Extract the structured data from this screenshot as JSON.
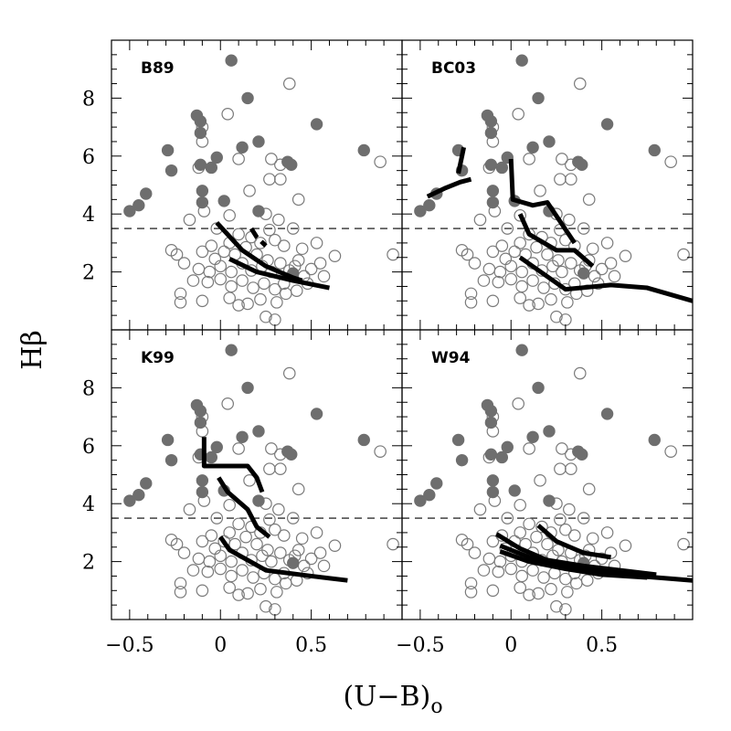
{
  "chart_data": {
    "type": "scatter",
    "layout": "2x2 panels sharing axes",
    "xlabel": "(U−B)",
    "xlabel_subscript": "o",
    "ylabel": "Hβ",
    "xlim": [
      -0.6,
      1.0
    ],
    "ylim": [
      0,
      10
    ],
    "x_ticks": [
      -0.5,
      0,
      0.5
    ],
    "x_tick_labels": [
      "−0.5",
      "0",
      "0.5"
    ],
    "y_ticks": [
      2,
      4,
      6,
      8
    ],
    "y_tick_labels": [
      "2",
      "4",
      "6",
      "8"
    ],
    "reference_line": {
      "y": 3.5,
      "style": "dashed"
    },
    "colors": {
      "filled": "#6e6e6e",
      "open": "#7a7a7a",
      "model": "#000000",
      "dashed": "#000000"
    },
    "filled_points": [
      [
        0.06,
        9.3
      ],
      [
        0.15,
        8.0
      ],
      [
        0.21,
        6.5
      ],
      [
        0.12,
        6.3
      ],
      [
        0.53,
        7.1
      ],
      [
        0.79,
        6.2
      ],
      [
        -0.13,
        7.4
      ],
      [
        -0.11,
        7.2
      ],
      [
        -0.11,
        6.8
      ],
      [
        -0.29,
        6.2
      ],
      [
        -0.11,
        5.7
      ],
      [
        -0.27,
        5.5
      ],
      [
        -0.02,
        5.95
      ],
      [
        -0.05,
        5.6
      ],
      [
        0.37,
        5.8
      ],
      [
        0.39,
        5.7
      ],
      [
        -0.1,
        4.8
      ],
      [
        -0.1,
        4.4
      ],
      [
        0.02,
        4.45
      ],
      [
        0.21,
        4.1
      ],
      [
        -0.41,
        4.7
      ],
      [
        -0.45,
        4.3
      ],
      [
        -0.5,
        4.1
      ],
      [
        0.4,
        1.95
      ]
    ],
    "open_points": [
      [
        0.38,
        8.5
      ],
      [
        0.04,
        7.45
      ],
      [
        -0.1,
        7.0
      ],
      [
        -0.1,
        6.5
      ],
      [
        0.1,
        5.9
      ],
      [
        0.28,
        5.9
      ],
      [
        -0.12,
        5.6
      ],
      [
        0.33,
        5.7
      ],
      [
        0.27,
        5.2
      ],
      [
        0.33,
        5.2
      ],
      [
        0.16,
        4.8
      ],
      [
        0.43,
        4.5
      ],
      [
        -0.09,
        4.1
      ],
      [
        0.05,
        3.95
      ],
      [
        0.25,
        4.0
      ],
      [
        0.32,
        3.8
      ],
      [
        -0.17,
        3.8
      ],
      [
        -0.02,
        3.5
      ],
      [
        0.27,
        3.45
      ],
      [
        0.4,
        3.5
      ],
      [
        -0.27,
        2.75
      ],
      [
        -0.24,
        2.6
      ],
      [
        -0.1,
        2.7
      ],
      [
        -0.05,
        2.9
      ],
      [
        0.05,
        3.0
      ],
      [
        0.1,
        3.3
      ],
      [
        0.17,
        3.2
      ],
      [
        0.22,
        3.0
      ],
      [
        0.3,
        3.1
      ],
      [
        0.35,
        2.9
      ],
      [
        0.45,
        2.8
      ],
      [
        0.53,
        3.0
      ],
      [
        0.63,
        2.55
      ],
      [
        0.95,
        2.6
      ],
      [
        0.88,
        5.8
      ],
      [
        -0.2,
        2.3
      ],
      [
        -0.12,
        2.1
      ],
      [
        -0.06,
        2.0
      ],
      [
        0.0,
        2.2
      ],
      [
        0.06,
        2.0
      ],
      [
        0.12,
        2.3
      ],
      [
        0.17,
        2.05
      ],
      [
        0.23,
        2.2
      ],
      [
        0.28,
        2.0
      ],
      [
        0.33,
        2.3
      ],
      [
        0.38,
        2.05
      ],
      [
        0.43,
        2.4
      ],
      [
        0.5,
        2.1
      ],
      [
        0.55,
        2.3
      ],
      [
        -0.15,
        1.7
      ],
      [
        -0.07,
        1.65
      ],
      [
        0.0,
        1.75
      ],
      [
        0.06,
        1.5
      ],
      [
        0.12,
        1.7
      ],
      [
        0.18,
        1.45
      ],
      [
        0.24,
        1.6
      ],
      [
        0.3,
        1.4
      ],
      [
        0.35,
        1.6
      ],
      [
        0.42,
        1.35
      ],
      [
        0.48,
        1.6
      ],
      [
        -0.22,
        1.25
      ],
      [
        -0.22,
        0.95
      ],
      [
        -0.1,
        1.0
      ],
      [
        0.05,
        1.1
      ],
      [
        0.1,
        0.85
      ],
      [
        0.15,
        0.9
      ],
      [
        0.25,
        0.45
      ],
      [
        0.3,
        0.35
      ],
      [
        0.08,
        2.6
      ],
      [
        0.02,
        2.7
      ],
      [
        -0.03,
        2.45
      ],
      [
        0.2,
        2.6
      ],
      [
        0.14,
        2.85
      ],
      [
        0.26,
        2.4
      ],
      [
        0.41,
        2.2
      ],
      [
        0.46,
        1.85
      ],
      [
        0.36,
        1.25
      ],
      [
        0.22,
        1.05
      ],
      [
        0.31,
        0.95
      ],
      [
        0.57,
        1.85
      ]
    ],
    "panels": [
      {
        "label": "B89",
        "solid": [
          [
            [
              -0.02,
              3.7
            ],
            [
              0.12,
              2.75
            ],
            [
              0.25,
              2.2
            ],
            [
              0.4,
              1.8
            ],
            [
              0.45,
              1.7
            ]
          ],
          [
            [
              0.05,
              2.45
            ],
            [
              0.2,
              2.0
            ],
            [
              0.4,
              1.7
            ],
            [
              0.6,
              1.45
            ]
          ]
        ],
        "dashed": [
          [
            [
              0.17,
              3.5
            ],
            [
              0.2,
              3.2
            ],
            [
              0.25,
              2.9
            ]
          ]
        ]
      },
      {
        "label": "BC03",
        "solid": [
          [
            [
              -0.46,
              4.6
            ],
            [
              -0.36,
              4.9
            ],
            [
              -0.28,
              5.1
            ],
            [
              -0.22,
              5.2
            ]
          ],
          [
            [
              -0.26,
              6.3
            ],
            [
              -0.29,
              5.4
            ]
          ],
          [
            [
              0.0,
              5.9
            ],
            [
              0.01,
              4.5
            ],
            [
              0.12,
              4.3
            ],
            [
              0.2,
              4.4
            ],
            [
              0.35,
              3.0
            ]
          ],
          [
            [
              0.05,
              4.0
            ],
            [
              0.1,
              3.3
            ],
            [
              0.25,
              2.75
            ],
            [
              0.35,
              2.75
            ],
            [
              0.45,
              2.2
            ]
          ],
          [
            [
              0.05,
              2.5
            ],
            [
              0.3,
              1.4
            ],
            [
              0.55,
              1.55
            ],
            [
              0.75,
              1.45
            ],
            [
              1.0,
              1.0
            ]
          ]
        ],
        "dashed": []
      },
      {
        "label": "K99",
        "solid": [
          [
            [
              -0.09,
              6.3
            ],
            [
              -0.09,
              5.3
            ],
            [
              0.0,
              5.3
            ],
            [
              0.15,
              5.3
            ],
            [
              0.2,
              4.9
            ],
            [
              0.23,
              4.4
            ]
          ],
          [
            [
              -0.01,
              4.9
            ],
            [
              0.04,
              4.4
            ],
            [
              0.15,
              3.8
            ],
            [
              0.2,
              3.2
            ],
            [
              0.27,
              2.85
            ]
          ],
          [
            [
              0.0,
              2.85
            ],
            [
              0.05,
              2.4
            ],
            [
              0.25,
              1.7
            ],
            [
              0.5,
              1.5
            ],
            [
              0.7,
              1.35
            ]
          ]
        ],
        "dashed": []
      },
      {
        "label": "W94",
        "solid": [
          [
            [
              0.15,
              3.25
            ],
            [
              0.25,
              2.7
            ],
            [
              0.4,
              2.3
            ],
            [
              0.55,
              2.15
            ]
          ],
          [
            [
              -0.08,
              2.95
            ],
            [
              0.05,
              2.45
            ],
            [
              0.2,
              2.05
            ],
            [
              0.4,
              1.85
            ],
            [
              0.6,
              1.7
            ],
            [
              0.8,
              1.55
            ]
          ],
          [
            [
              -0.06,
              2.55
            ],
            [
              0.1,
              2.15
            ],
            [
              0.3,
              1.85
            ],
            [
              0.6,
              1.55
            ],
            [
              0.9,
              1.4
            ],
            [
              1.0,
              1.35
            ]
          ],
          [
            [
              -0.06,
              2.35
            ],
            [
              0.1,
              2.0
            ],
            [
              0.3,
              1.75
            ],
            [
              0.5,
              1.55
            ],
            [
              0.75,
              1.45
            ]
          ]
        ],
        "dashed": []
      }
    ]
  }
}
